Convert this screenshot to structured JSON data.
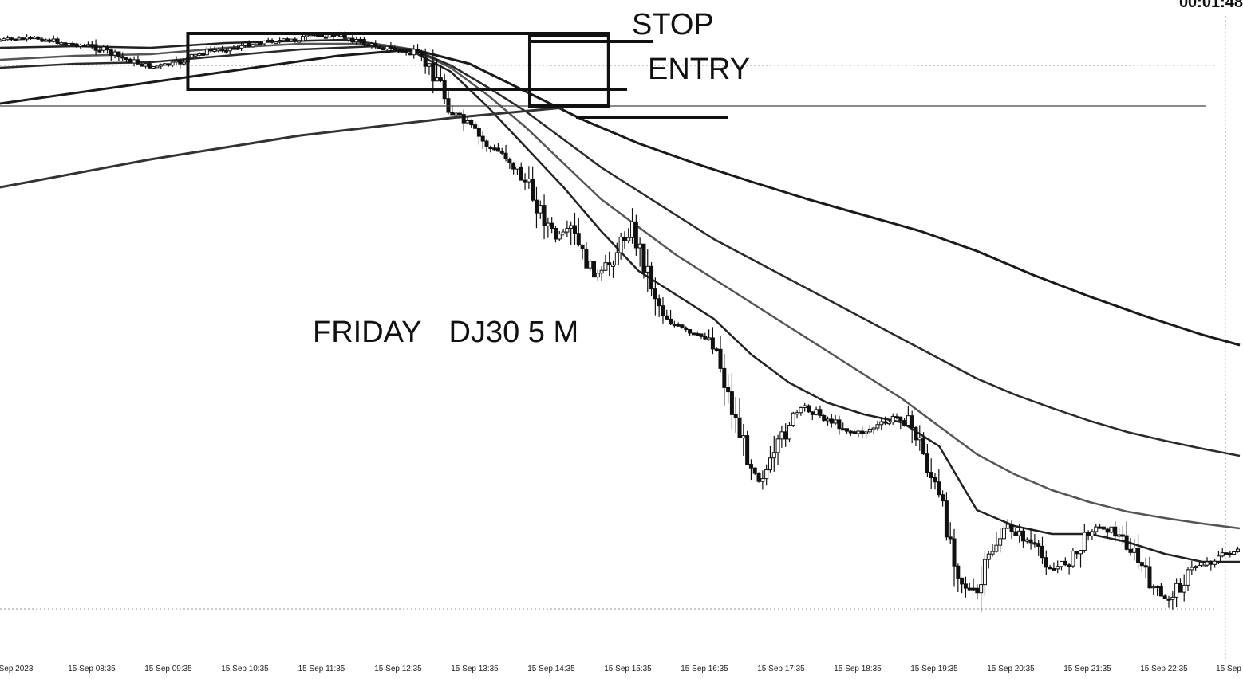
{
  "annotations": {
    "stop": "STOP",
    "entry": "ENTRY",
    "day": "FRIDAY",
    "symbol": "DJ30 5 M",
    "timer": "00:01:48"
  },
  "chart_data": {
    "type": "candlestick",
    "title": "",
    "xlabel": "",
    "ylabel": "",
    "x_ticks": [
      "Sep 2023",
      "15 Sep 08:35",
      "15 Sep 09:35",
      "15 Sep 10:35",
      "15 Sep 11:35",
      "15 Sep 12:35",
      "15 Sep 13:35",
      "15 Sep 14:35",
      "15 Sep 15:35",
      "15 Sep 16:35",
      "15 Sep 17:35",
      "15 Sep 18:35",
      "15 Sep 19:35",
      "15 Sep 20:35",
      "15 Sep 21:35",
      "15 Sep 22:35",
      "15 Sep"
    ],
    "grid": false,
    "price_path": [
      [
        0,
        50
      ],
      [
        10,
        48
      ],
      [
        20,
        56
      ],
      [
        25,
        58
      ],
      [
        32,
        72
      ],
      [
        40,
        84
      ],
      [
        47,
        80
      ],
      [
        55,
        64
      ],
      [
        62,
        60
      ],
      [
        70,
        52
      ],
      [
        78,
        50
      ],
      [
        84,
        44
      ],
      [
        92,
        46
      ],
      [
        98,
        56
      ],
      [
        103,
        60
      ],
      [
        110,
        68
      ],
      [
        116,
        92
      ],
      [
        120,
        140
      ],
      [
        125,
        160
      ],
      [
        130,
        185
      ],
      [
        135,
        195
      ],
      [
        140,
        230
      ],
      [
        145,
        275
      ],
      [
        148,
        300
      ],
      [
        152,
        290
      ],
      [
        156,
        330
      ],
      [
        160,
        350
      ],
      [
        164,
        315
      ],
      [
        168,
        285
      ],
      [
        172,
        335
      ],
      [
        176,
        390
      ],
      [
        180,
        410
      ],
      [
        184,
        420
      ],
      [
        190,
        425
      ],
      [
        194,
        500
      ],
      [
        198,
        560
      ],
      [
        202,
        600
      ],
      [
        206,
        580
      ],
      [
        210,
        530
      ],
      [
        214,
        510
      ],
      [
        220,
        525
      ],
      [
        228,
        545
      ],
      [
        236,
        530
      ],
      [
        240,
        520
      ],
      [
        244,
        545
      ],
      [
        248,
        600
      ],
      [
        252,
        660
      ],
      [
        256,
        730
      ],
      [
        260,
        750
      ],
      [
        264,
        690
      ],
      [
        268,
        660
      ],
      [
        274,
        680
      ],
      [
        280,
        715
      ],
      [
        286,
        700
      ],
      [
        290,
        665
      ],
      [
        294,
        660
      ],
      [
        300,
        680
      ],
      [
        306,
        730
      ],
      [
        310,
        755
      ],
      [
        314,
        735
      ],
      [
        318,
        710
      ],
      [
        322,
        705
      ],
      [
        326,
        695
      ],
      [
        330,
        690
      ]
    ],
    "moving_averages": [
      {
        "points": [
          [
            0,
            60
          ],
          [
            20,
            58
          ],
          [
            40,
            60
          ],
          [
            60,
            54
          ],
          [
            75,
            52
          ],
          [
            92,
            50
          ],
          [
            100,
            55
          ],
          [
            110,
            65
          ],
          [
            120,
            90
          ],
          [
            130,
            135
          ],
          [
            140,
            185
          ],
          [
            150,
            235
          ],
          [
            160,
            290
          ],
          [
            170,
            340
          ],
          [
            180,
            370
          ],
          [
            190,
            400
          ],
          [
            200,
            445
          ],
          [
            210,
            480
          ],
          [
            220,
            505
          ],
          [
            230,
            520
          ],
          [
            240,
            530
          ],
          [
            250,
            560
          ],
          [
            260,
            640
          ],
          [
            270,
            660
          ],
          [
            280,
            670
          ],
          [
            290,
            670
          ],
          [
            300,
            680
          ],
          [
            310,
            695
          ],
          [
            320,
            705
          ],
          [
            330,
            705
          ]
        ]
      },
      {
        "points": [
          [
            0,
            75
          ],
          [
            20,
            70
          ],
          [
            40,
            68
          ],
          [
            60,
            60
          ],
          [
            80,
            55
          ],
          [
            100,
            55
          ],
          [
            110,
            62
          ],
          [
            120,
            85
          ],
          [
            130,
            120
          ],
          [
            140,
            160
          ],
          [
            150,
            205
          ],
          [
            160,
            250
          ],
          [
            170,
            285
          ],
          [
            180,
            320
          ],
          [
            190,
            350
          ],
          [
            200,
            380
          ],
          [
            210,
            410
          ],
          [
            220,
            440
          ],
          [
            230,
            470
          ],
          [
            240,
            500
          ],
          [
            250,
            535
          ],
          [
            260,
            570
          ],
          [
            270,
            595
          ],
          [
            280,
            615
          ],
          [
            290,
            630
          ],
          [
            300,
            642
          ],
          [
            310,
            650
          ],
          [
            320,
            657
          ],
          [
            330,
            663
          ]
        ]
      },
      {
        "points": [
          [
            0,
            85
          ],
          [
            20,
            80
          ],
          [
            40,
            78
          ],
          [
            60,
            70
          ],
          [
            80,
            62
          ],
          [
            100,
            58
          ],
          [
            110,
            62
          ],
          [
            120,
            82
          ],
          [
            130,
            110
          ],
          [
            140,
            140
          ],
          [
            150,
            175
          ],
          [
            160,
            210
          ],
          [
            170,
            240
          ],
          [
            180,
            270
          ],
          [
            190,
            300
          ],
          [
            200,
            325
          ],
          [
            210,
            350
          ],
          [
            220,
            375
          ],
          [
            230,
            400
          ],
          [
            240,
            425
          ],
          [
            250,
            450
          ],
          [
            260,
            475
          ],
          [
            270,
            495
          ],
          [
            280,
            512
          ],
          [
            290,
            528
          ],
          [
            300,
            542
          ],
          [
            310,
            553
          ],
          [
            320,
            563
          ],
          [
            330,
            572
          ]
        ]
      },
      {
        "points": [
          [
            0,
            130
          ],
          [
            30,
            110
          ],
          [
            60,
            90
          ],
          [
            90,
            70
          ],
          [
            110,
            62
          ],
          [
            125,
            80
          ],
          [
            140,
            115
          ],
          [
            155,
            150
          ],
          [
            170,
            180
          ],
          [
            185,
            205
          ],
          [
            200,
            228
          ],
          [
            215,
            250
          ],
          [
            230,
            270
          ],
          [
            245,
            290
          ],
          [
            260,
            315
          ],
          [
            275,
            345
          ],
          [
            290,
            372
          ],
          [
            305,
            397
          ],
          [
            320,
            420
          ],
          [
            330,
            433
          ]
        ]
      },
      {
        "points": [
          [
            0,
            235
          ],
          [
            40,
            200
          ],
          [
            80,
            170
          ],
          [
            120,
            148
          ],
          [
            150,
            135
          ]
        ]
      }
    ],
    "levels": [
      {
        "name": "STOP",
        "y": 50
      },
      {
        "name": "ENTRY",
        "y": 110
      },
      {
        "name": "",
        "y": 133
      },
      {
        "name": "",
        "y": 147
      }
    ],
    "boxes": [
      {
        "x0": 50,
        "x1": 162,
        "y0": 42,
        "y1": 112
      },
      {
        "x0": 141,
        "x1": 162,
        "y0": 45,
        "y1": 133
      }
    ]
  }
}
